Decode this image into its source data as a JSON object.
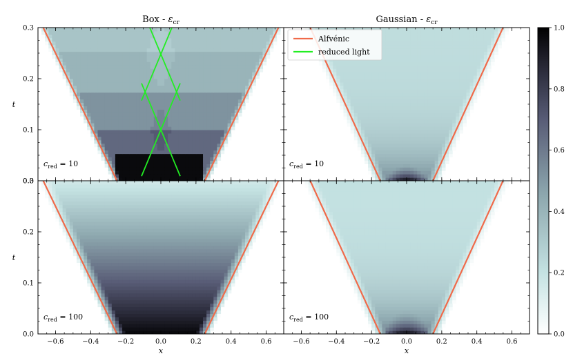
{
  "chart_data": {
    "type": "heatmap",
    "colormap": "bone_r",
    "colors": {
      "alfvenic": "#f06a4a",
      "reduced_light": "#22ee22"
    },
    "colorbar": {
      "range": [
        0.0,
        1.0
      ],
      "ticks": [
        "0.0",
        "0.2",
        "0.4",
        "0.6",
        "0.8",
        "1.0"
      ]
    },
    "x_ticks": [
      "−0.6",
      "−0.4",
      "−0.2",
      "0.0",
      "0.2",
      "0.4",
      "0.6"
    ],
    "y_ticks": [
      "0.0",
      "0.1",
      "0.2",
      "0.3"
    ],
    "xlabel": "x",
    "ylabel": "t",
    "xlim": [
      -0.7,
      0.7
    ],
    "ylim": [
      0.0,
      0.3
    ],
    "legend": {
      "placement": "top-left of right column",
      "entries": [
        "Alfvénic",
        "reduced light"
      ]
    },
    "panels": [
      {
        "id": "box-10",
        "row": 0,
        "col": 0,
        "title": "Box - ",
        "title_sub": "cr",
        "profile": "box",
        "c_red": "10",
        "annotation_prefix": "c",
        "annotation_sub": "red",
        "annotation_value": " = 10",
        "alfven_x0": 0.25,
        "alfven_speed": 1.4,
        "front_speed": 1.4,
        "reduced_light_crossings": [
          {
            "x": 0.0,
            "t": 0.1
          },
          {
            "x": 0.0,
            "t": 0.248
          }
        ],
        "reduced_light_speed": 1.21
      },
      {
        "id": "gauss-10",
        "row": 0,
        "col": 1,
        "title": "Gaussian - ",
        "title_sub": "cr",
        "profile": "gaussian",
        "c_red": "10",
        "annotation_prefix": "c",
        "annotation_sub": "red",
        "annotation_value": " = 10",
        "alfven_x0": 0.15,
        "alfven_speed": 1.33,
        "front_speed": 1.33,
        "reduced_light_crossings": []
      },
      {
        "id": "box-100",
        "row": 1,
        "col": 0,
        "title": "",
        "profile": "box",
        "c_red": "100",
        "annotation_prefix": "c",
        "annotation_sub": "red",
        "annotation_value": " = 100",
        "alfven_x0": 0.25,
        "alfven_speed": 1.4,
        "front_speed": 1.4,
        "reduced_light_crossings": []
      },
      {
        "id": "gauss-100",
        "row": 1,
        "col": 1,
        "title": "",
        "profile": "gaussian",
        "c_red": "100",
        "annotation_prefix": "c",
        "annotation_sub": "red",
        "annotation_value": " = 100",
        "alfven_x0": 0.15,
        "alfven_speed": 1.33,
        "front_speed": 1.33,
        "reduced_light_crossings": []
      }
    ]
  }
}
